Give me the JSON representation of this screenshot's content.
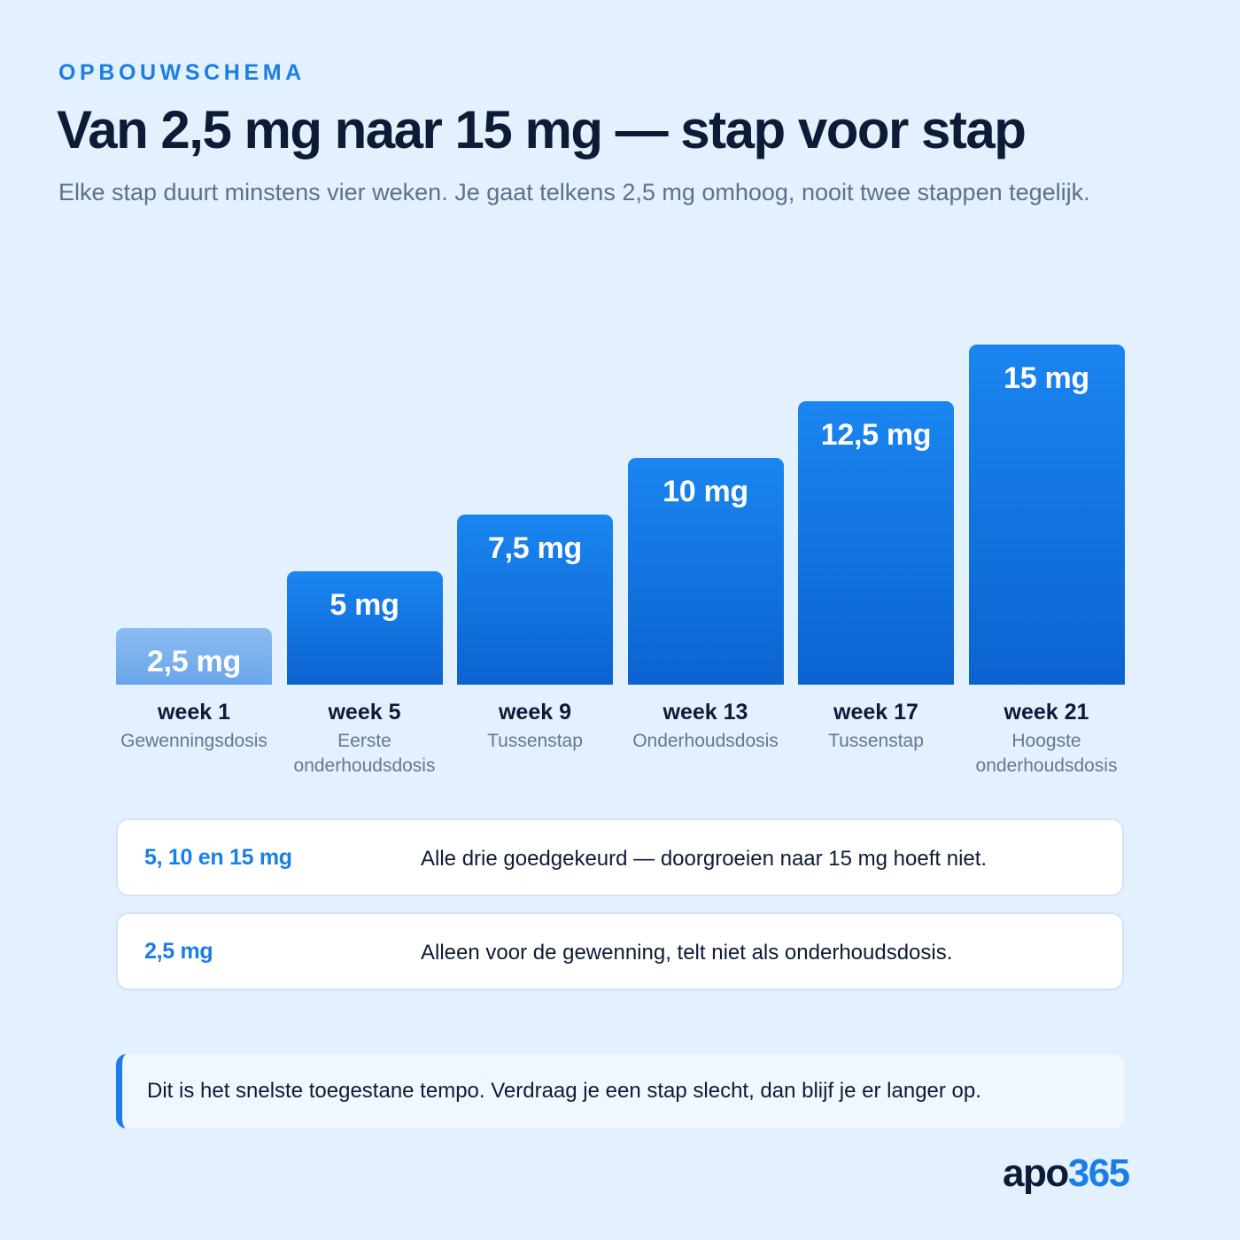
{
  "header": {
    "eyebrow": "OPBOUWSCHEMA",
    "title": "Van 2,5 mg naar 15 mg — stap voor stap",
    "subtitle": "Elke stap duurt minstens vier weken. Je gaat telkens 2,5 mg omhoog, nooit twee stappen tegelijk."
  },
  "chart_data": {
    "type": "bar",
    "categories": [
      "week 1",
      "week 5",
      "week 9",
      "week 13",
      "week 17",
      "week 21"
    ],
    "descriptions": [
      "Gewenningsdosis",
      "Eerste onderhoudsdosis",
      "Tussenstap",
      "Onderhoudsdosis",
      "Tussenstap",
      "Hoogste onderhoudsdosis"
    ],
    "values": [
      2.5,
      5,
      7.5,
      10,
      12.5,
      15
    ],
    "value_labels": [
      "2,5 mg",
      "5 mg",
      "7,5 mg",
      "10 mg",
      "12,5 mg",
      "15 mg"
    ],
    "ylim": [
      0,
      15
    ],
    "colors": {
      "first": "#7ab2ee",
      "other": "#1478e6"
    }
  },
  "notes": [
    {
      "key": "5, 10 en 15 mg",
      "text": "Alle drie goedgekeurd — doorgroeien naar 15 mg hoeft niet."
    },
    {
      "key": "2,5 mg",
      "text": "Alleen voor de gewenning, telt niet als onderhoudsdosis."
    }
  ],
  "callout": "Dit is het snelste toegestane tempo. Verdraag je een stap slecht, dan blijf je er langer op.",
  "brand": {
    "prefix": "apo",
    "number": "365"
  },
  "colors": {
    "accent": "#1a7ee6",
    "background": "#e3f0fd",
    "text": "#0d1b36"
  }
}
